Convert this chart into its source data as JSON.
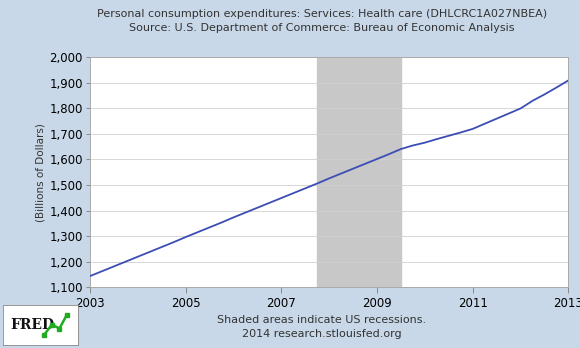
{
  "title_line1": "Personal consumption expenditures: Services: Health care (DHLCRC1A027NBEA)",
  "title_line2": "Source: U.S. Department of Commerce: Bureau of Economic Analysis",
  "ylabel": "(Billions of Dollars)",
  "footer_line1": "Shaded areas indicate US recessions.",
  "footer_line2": "2014 research.stlouisfed.org",
  "xlim": [
    2003,
    2013
  ],
  "ylim": [
    1100,
    2000
  ],
  "yticks": [
    1100,
    1200,
    1300,
    1400,
    1500,
    1600,
    1700,
    1800,
    1900,
    2000
  ],
  "xticks": [
    2003,
    2005,
    2007,
    2009,
    2011,
    2013
  ],
  "recession_start": 2007.75,
  "recession_end": 2009.5,
  "recession_color": "#c8c8c8",
  "line_color": "#3c4db5",
  "line_width": 1.3,
  "background_outer": "#c8d8e8",
  "background_plot": "#ffffff",
  "title_fontsize": 8.0,
  "tick_fontsize": 8.5,
  "ylabel_fontsize": 7.5,
  "footer_fontsize": 8.0,
  "data_years": [
    2003.0,
    2003.25,
    2003.5,
    2003.75,
    2004.0,
    2004.25,
    2004.5,
    2004.75,
    2005.0,
    2005.25,
    2005.5,
    2005.75,
    2006.0,
    2006.25,
    2006.5,
    2006.75,
    2007.0,
    2007.25,
    2007.5,
    2007.75,
    2008.0,
    2008.25,
    2008.5,
    2008.75,
    2009.0,
    2009.25,
    2009.5,
    2009.75,
    2010.0,
    2010.25,
    2010.5,
    2010.75,
    2011.0,
    2011.25,
    2011.5,
    2011.75,
    2012.0,
    2012.25,
    2012.5,
    2012.75,
    2013.0
  ],
  "data_values": [
    1143,
    1162,
    1181,
    1200,
    1219,
    1238,
    1257,
    1276,
    1296,
    1315,
    1334,
    1353,
    1373,
    1392,
    1411,
    1430,
    1449,
    1468,
    1487,
    1506,
    1526,
    1545,
    1564,
    1583,
    1602,
    1621,
    1641,
    1655,
    1666,
    1680,
    1693,
    1706,
    1720,
    1740,
    1760,
    1780,
    1800,
    1830,
    1855,
    1882,
    1910
  ]
}
